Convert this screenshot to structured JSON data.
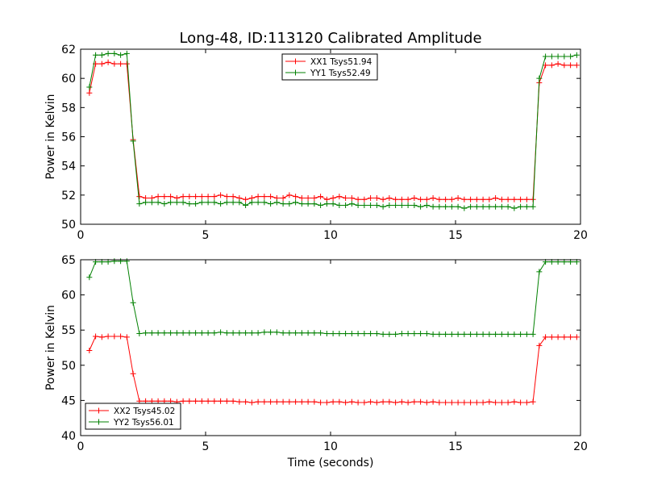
{
  "figure": {
    "title": "Long-48, ID:113120 Calibrated Amplitude",
    "xlabel": "Time (seconds)"
  },
  "chart_data": [
    {
      "type": "line",
      "title": "Long-48, ID:113120 Calibrated Amplitude",
      "xlabel": "",
      "ylabel": "Power in Kelvin",
      "xlim": [
        0,
        20
      ],
      "ylim": [
        50,
        62
      ],
      "xticks": [
        0,
        5,
        10,
        15,
        20
      ],
      "yticks": [
        50,
        52,
        54,
        56,
        58,
        60,
        62
      ],
      "grid": false,
      "legend_position": "top-center",
      "marker": "+",
      "x": [
        0.35,
        0.6,
        0.85,
        1.1,
        1.35,
        1.6,
        1.85,
        2.1,
        2.35,
        2.6,
        2.85,
        3.1,
        3.35,
        3.6,
        3.85,
        4.1,
        4.35,
        4.6,
        4.85,
        5.1,
        5.35,
        5.6,
        5.85,
        6.1,
        6.35,
        6.6,
        6.85,
        7.1,
        7.35,
        7.6,
        7.85,
        8.1,
        8.35,
        8.6,
        8.85,
        9.1,
        9.35,
        9.6,
        9.85,
        10.1,
        10.35,
        10.6,
        10.85,
        11.1,
        11.35,
        11.6,
        11.85,
        12.1,
        12.35,
        12.6,
        12.85,
        13.1,
        13.35,
        13.6,
        13.85,
        14.1,
        14.35,
        14.6,
        14.85,
        15.1,
        15.35,
        15.6,
        15.85,
        16.1,
        16.35,
        16.6,
        16.85,
        17.1,
        17.35,
        17.6,
        17.85,
        18.1,
        18.35,
        18.6,
        18.85,
        19.1,
        19.35,
        19.6,
        19.85
      ],
      "series": [
        {
          "name": "XX1 Tsys51.94",
          "color": "#ff0000",
          "values": [
            59.0,
            61.0,
            61.0,
            61.1,
            61.0,
            61.0,
            61.0,
            55.8,
            51.9,
            51.8,
            51.8,
            51.9,
            51.9,
            51.9,
            51.8,
            51.9,
            51.9,
            51.9,
            51.9,
            51.9,
            51.9,
            52.0,
            51.9,
            51.9,
            51.8,
            51.7,
            51.8,
            51.9,
            51.9,
            51.9,
            51.8,
            51.8,
            52.0,
            51.9,
            51.8,
            51.8,
            51.8,
            51.9,
            51.7,
            51.8,
            51.9,
            51.8,
            51.8,
            51.7,
            51.7,
            51.8,
            51.8,
            51.7,
            51.8,
            51.7,
            51.7,
            51.7,
            51.8,
            51.7,
            51.7,
            51.8,
            51.7,
            51.7,
            51.7,
            51.8,
            51.7,
            51.7,
            51.7,
            51.7,
            51.7,
            51.8,
            51.7,
            51.7,
            51.7,
            51.7,
            51.7,
            51.7,
            59.7,
            60.9,
            60.9,
            61.0,
            60.9,
            60.9,
            60.9
          ]
        },
        {
          "name": "YY1 Tsys52.49",
          "color": "#008000",
          "values": [
            59.4,
            61.6,
            61.6,
            61.7,
            61.7,
            61.6,
            61.7,
            55.7,
            51.4,
            51.5,
            51.5,
            51.5,
            51.4,
            51.5,
            51.5,
            51.5,
            51.4,
            51.4,
            51.5,
            51.5,
            51.5,
            51.4,
            51.5,
            51.5,
            51.5,
            51.3,
            51.5,
            51.5,
            51.5,
            51.4,
            51.5,
            51.4,
            51.4,
            51.5,
            51.4,
            51.4,
            51.4,
            51.3,
            51.4,
            51.4,
            51.3,
            51.3,
            51.4,
            51.3,
            51.3,
            51.3,
            51.3,
            51.2,
            51.3,
            51.3,
            51.3,
            51.3,
            51.3,
            51.2,
            51.3,
            51.2,
            51.2,
            51.2,
            51.2,
            51.2,
            51.1,
            51.2,
            51.2,
            51.2,
            51.2,
            51.2,
            51.2,
            51.2,
            51.1,
            51.2,
            51.2,
            51.2,
            60.0,
            61.5,
            61.5,
            61.5,
            61.5,
            61.5,
            61.6
          ]
        }
      ]
    },
    {
      "type": "line",
      "title": "",
      "xlabel": "Time (seconds)",
      "ylabel": "Power in Kelvin",
      "xlim": [
        0,
        20
      ],
      "ylim": [
        40,
        65
      ],
      "xticks": [
        0,
        5,
        10,
        15,
        20
      ],
      "yticks": [
        40,
        45,
        50,
        55,
        60,
        65
      ],
      "grid": false,
      "legend_position": "bottom-left",
      "marker": "+",
      "x": [
        0.35,
        0.6,
        0.85,
        1.1,
        1.35,
        1.6,
        1.85,
        2.1,
        2.35,
        2.6,
        2.85,
        3.1,
        3.35,
        3.6,
        3.85,
        4.1,
        4.35,
        4.6,
        4.85,
        5.1,
        5.35,
        5.6,
        5.85,
        6.1,
        6.35,
        6.6,
        6.85,
        7.1,
        7.35,
        7.6,
        7.85,
        8.1,
        8.35,
        8.6,
        8.85,
        9.1,
        9.35,
        9.6,
        9.85,
        10.1,
        10.35,
        10.6,
        10.85,
        11.1,
        11.35,
        11.6,
        11.85,
        12.1,
        12.35,
        12.6,
        12.85,
        13.1,
        13.35,
        13.6,
        13.85,
        14.1,
        14.35,
        14.6,
        14.85,
        15.1,
        15.35,
        15.6,
        15.85,
        16.1,
        16.35,
        16.6,
        16.85,
        17.1,
        17.35,
        17.6,
        17.85,
        18.1,
        18.35,
        18.6,
        18.85,
        19.1,
        19.35,
        19.6,
        19.85
      ],
      "series": [
        {
          "name": "XX2 Tsys45.02",
          "color": "#ff0000",
          "values": [
            52.1,
            54.1,
            54.0,
            54.1,
            54.1,
            54.1,
            54.0,
            48.8,
            44.9,
            44.9,
            44.9,
            44.9,
            44.9,
            44.9,
            44.8,
            44.9,
            44.9,
            44.9,
            44.9,
            44.9,
            44.9,
            44.9,
            44.9,
            44.9,
            44.8,
            44.8,
            44.7,
            44.8,
            44.8,
            44.8,
            44.8,
            44.8,
            44.8,
            44.8,
            44.8,
            44.8,
            44.8,
            44.7,
            44.7,
            44.8,
            44.8,
            44.7,
            44.8,
            44.7,
            44.7,
            44.8,
            44.7,
            44.8,
            44.8,
            44.7,
            44.8,
            44.7,
            44.8,
            44.8,
            44.7,
            44.8,
            44.7,
            44.7,
            44.7,
            44.7,
            44.7,
            44.7,
            44.7,
            44.7,
            44.8,
            44.7,
            44.7,
            44.7,
            44.8,
            44.7,
            44.7,
            44.8,
            52.8,
            54.0,
            54.0,
            54.0,
            54.0,
            54.0,
            54.0
          ]
        },
        {
          "name": "YY2 Tsys56.01",
          "color": "#008000",
          "values": [
            62.5,
            64.7,
            64.7,
            64.7,
            64.8,
            64.8,
            64.8,
            58.9,
            54.5,
            54.6,
            54.6,
            54.6,
            54.6,
            54.6,
            54.6,
            54.6,
            54.6,
            54.6,
            54.6,
            54.6,
            54.6,
            54.7,
            54.6,
            54.6,
            54.6,
            54.6,
            54.6,
            54.6,
            54.7,
            54.7,
            54.7,
            54.6,
            54.6,
            54.6,
            54.6,
            54.6,
            54.6,
            54.6,
            54.5,
            54.5,
            54.5,
            54.5,
            54.5,
            54.5,
            54.5,
            54.5,
            54.5,
            54.4,
            54.4,
            54.4,
            54.5,
            54.5,
            54.5,
            54.5,
            54.5,
            54.4,
            54.4,
            54.4,
            54.4,
            54.4,
            54.4,
            54.4,
            54.4,
            54.4,
            54.4,
            54.4,
            54.4,
            54.4,
            54.4,
            54.4,
            54.4,
            54.4,
            63.3,
            64.7,
            64.7,
            64.7,
            64.7,
            64.7,
            64.7
          ]
        }
      ]
    }
  ]
}
